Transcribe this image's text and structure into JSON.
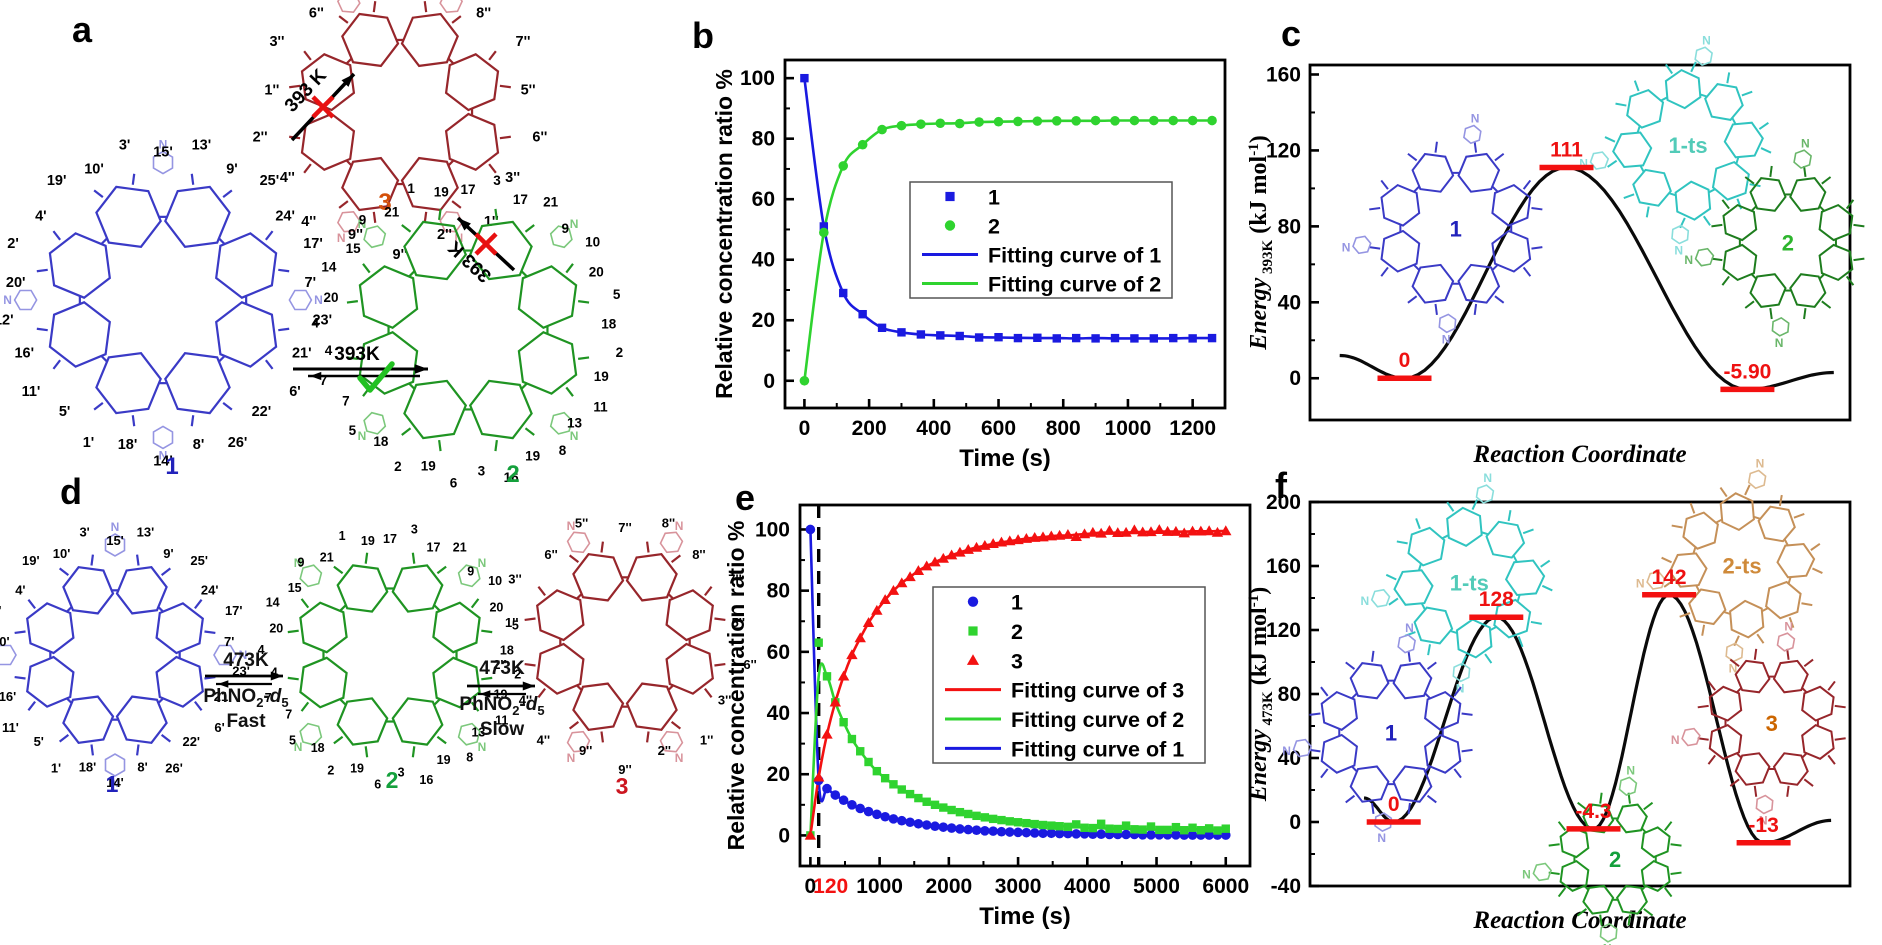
{
  "figure": {
    "background": "#ffffff"
  },
  "panels": {
    "a": {
      "letter": "a",
      "compound1_label": "1",
      "compound2_label": "2",
      "compound3_label": "3",
      "arrow_1_to_3": {
        "label": "393 K",
        "blocked": true
      },
      "arrow_2_to_3": {
        "label": "393 K",
        "blocked": true
      },
      "arrow_1_to_2": {
        "label": "393K",
        "allowed": true
      }
    },
    "d": {
      "letter": "d",
      "compound1_label": "1",
      "compound2_label": "2",
      "compound3_label": "3",
      "arrow1": {
        "temp": "473K",
        "solvent_pre": "PhNO",
        "solvent_sub1": "2",
        "solvent_dash": "-",
        "solvent_it": "d",
        "solvent_sub2": "5",
        "rate": "Fast"
      },
      "arrow2": {
        "temp": "473K",
        "solvent_pre": "PhNO",
        "solvent_sub1": "2",
        "solvent_dash": "-",
        "solvent_it": "d",
        "solvent_sub2": "5",
        "rate": "Slow"
      }
    },
    "b": {
      "letter": "b"
    },
    "c": {
      "letter": "c"
    },
    "e": {
      "letter": "e"
    },
    "f": {
      "letter": "f"
    }
  },
  "compounds": {
    "1": {
      "name": "1",
      "nitrogen": "N",
      "atom_labels": [
        "15'",
        "13'",
        "9'",
        "25'",
        "24'",
        "17'",
        "7'",
        "23'",
        "21'",
        "6'",
        "22'",
        "26'",
        "8'",
        "14'",
        "18'",
        "1'",
        "5'",
        "11'",
        "16'",
        "12'",
        "20'",
        "2'",
        "4'",
        "19'",
        "10'",
        "3'"
      ]
    },
    "2": {
      "name": "2",
      "nitrogen": "N",
      "atom_labels": [
        "17",
        "3",
        "17",
        "21",
        "9",
        "10",
        "20",
        "5",
        "18",
        "2",
        "19",
        "11",
        "13",
        "8",
        "19",
        "16",
        "3",
        "6",
        "19",
        "2",
        "18",
        "5",
        "7",
        "7",
        "4",
        "4",
        "20",
        "14",
        "15",
        "9",
        "21",
        "1",
        "19"
      ]
    },
    "3": {
      "name": "3",
      "nitrogen": "N",
      "atom_labels": [
        "7''",
        "8''",
        "8''",
        "7''",
        "5''",
        "6''",
        "3''",
        "1''",
        "2''",
        "9''",
        "9''",
        "4''",
        "4''",
        "2''",
        "1''",
        "3''",
        "6''",
        "5''"
      ]
    }
  },
  "compound_colors": {
    "c1": {
      "main": "#3a3ac6",
      "pendant": "#9595e2",
      "label": "#2222bb"
    },
    "c2": {
      "main": "#1f9422",
      "pendant": "#7cc87c",
      "label": "#14a03c"
    },
    "c3": {
      "main": "#97262b",
      "pendant": "#d8939b",
      "label_a": "#d4500a",
      "label_d": "#cc1620",
      "label_f": "#cc6600"
    },
    "c1ts": {
      "main": "#30c4c0",
      "pendant": "#8adedc",
      "label": "#52cbb8"
    },
    "c2ts": {
      "main": "#c59058",
      "pendant": "#ddba90",
      "label": "#cf8a3a"
    },
    "c2dark": {
      "main": "#1e7d1e",
      "pendant": "#6ab66a",
      "label": "#2db52d"
    }
  },
  "chart_data": [
    {
      "id": "b",
      "type": "line",
      "xlabel": "Time (s)",
      "ylabel": "Relative concentration ratio %",
      "xlim": [
        -60,
        1300
      ],
      "ylim": [
        -9,
        106
      ],
      "xticks": [
        0,
        200,
        400,
        600,
        800,
        1000,
        1200
      ],
      "yticks": [
        0,
        20,
        40,
        60,
        80,
        100
      ],
      "grid": false,
      "legend_position": "center-right",
      "x": [
        0,
        60,
        120,
        180,
        240,
        300,
        360,
        420,
        480,
        540,
        600,
        660,
        720,
        780,
        840,
        900,
        960,
        1020,
        1080,
        1140,
        1200,
        1260
      ],
      "series": [
        {
          "name": "1",
          "marker": "square",
          "color": "#1a1ae0",
          "values": [
            100,
            51,
            29,
            22,
            17.5,
            16,
            15.3,
            15,
            14.8,
            14.3,
            14.4,
            14.1,
            14.2,
            14,
            14.1,
            14,
            14.1,
            14,
            14,
            14.1,
            14,
            14.1
          ]
        },
        {
          "name": "2",
          "marker": "circle",
          "color": "#2fd32f",
          "values": [
            0,
            49,
            71,
            78,
            83,
            84.3,
            84.8,
            85.1,
            85,
            85.5,
            85.6,
            85.7,
            85.8,
            85.9,
            85.9,
            86,
            85.9,
            86,
            86,
            86,
            86,
            86
          ]
        }
      ],
      "legend": [
        {
          "kind": "marker",
          "marker": "square",
          "color": "#1a1ae0",
          "label": "1"
        },
        {
          "kind": "marker",
          "marker": "circle",
          "color": "#2fd32f",
          "label": "2"
        },
        {
          "kind": "line",
          "color": "#1a1ae0",
          "label": "Fitting curve of 1"
        },
        {
          "kind": "line",
          "color": "#2fd32f",
          "label": "Fitting curve of 2"
        }
      ]
    },
    {
      "id": "c",
      "type": "energy",
      "ylabel_main": "Energy",
      "ylabel_sub": "393K",
      "ylabel_unit_pre": " (kJ mol",
      "ylabel_unit_sup": "-1",
      "ylabel_unit_post": ")",
      "xlabel": "Reaction Coordinate",
      "ylim": [
        -22,
        165
      ],
      "yticks": [
        0,
        40,
        80,
        120,
        160
      ],
      "value_color": "#ee1111",
      "profile_start": {
        "xf": 0.055,
        "value": 12
      },
      "profile_end": {
        "xf": 0.97,
        "value": 3
      },
      "stationary_points": [
        {
          "xf": 0.175,
          "value": 0,
          "label": "0",
          "species": "1"
        },
        {
          "xf": 0.475,
          "value": 111,
          "label": "111",
          "species": "1-ts"
        },
        {
          "xf": 0.81,
          "value": -5.9,
          "label": "-5.90",
          "species": "2"
        }
      ],
      "insets": [
        {
          "label": "1",
          "palette": "c1",
          "xf": 0.27,
          "yf": 0.46,
          "r": 60
        },
        {
          "label": "1-ts",
          "palette": "c1ts",
          "xf": 0.7,
          "yf": 0.225,
          "r": 56
        },
        {
          "label": "2",
          "palette": "c2dark",
          "xf": 0.885,
          "yf": 0.5,
          "r": 52
        }
      ]
    },
    {
      "id": "e",
      "type": "line",
      "xlabel": "Time (s)",
      "ylabel": "Relative concentration ratio %",
      "xlim": [
        -150,
        6350
      ],
      "ylim": [
        -10,
        108
      ],
      "xticks": [
        0,
        1000,
        2000,
        3000,
        4000,
        5000,
        6000
      ],
      "extra_xtick": {
        "value": 120,
        "label": "120",
        "color": "#f31111"
      },
      "vline": {
        "x": 120,
        "style": "dashed",
        "color": "#000000"
      },
      "yticks": [
        0,
        20,
        40,
        60,
        80,
        100
      ],
      "grid": false,
      "legend_position": "center-right",
      "x": [
        0,
        120,
        240,
        360,
        480,
        600,
        720,
        840,
        960,
        1080,
        1200,
        1320,
        1440,
        1560,
        1680,
        1800,
        1920,
        2040,
        2160,
        2280,
        2400,
        2520,
        2640,
        2760,
        2880,
        3000,
        3120,
        3240,
        3360,
        3480,
        3600,
        3720,
        3840,
        3960,
        4080,
        4200,
        4320,
        4440,
        4560,
        4680,
        4800,
        4920,
        5040,
        5160,
        5280,
        5400,
        5520,
        5640,
        5760,
        5880,
        6000
      ],
      "series": [
        {
          "name": "1",
          "marker": "circle",
          "color": "#1a1ae0",
          "values": [
            100,
            18,
            15.3,
            13.2,
            11.5,
            10,
            8.8,
            7.8,
            6.9,
            6.1,
            5.4,
            4.8,
            4.3,
            3.8,
            3.4,
            3,
            2.7,
            2.4,
            2.1,
            1.9,
            1.7,
            1.5,
            1.4,
            1.2,
            1.1,
            1,
            0.9,
            0.8,
            0.7,
            0.7,
            0.6,
            0.6,
            0.5,
            0.5,
            0.4,
            0.4,
            0.3,
            0.3,
            0.3,
            0.3,
            0.2,
            0.2,
            0.2,
            0.2,
            0.2,
            0.1,
            0.1,
            0.1,
            0.1,
            0.1,
            0.1
          ]
        },
        {
          "name": "2",
          "marker": "square",
          "color": "#2fd32f",
          "values": [
            0,
            63,
            52,
            43.5,
            37,
            31.5,
            27.5,
            24,
            21,
            18.7,
            16.7,
            15,
            13.5,
            12.2,
            11,
            10,
            9.1,
            8.3,
            7.6,
            7,
            6.4,
            5.9,
            5.4,
            5,
            4.6,
            4.3,
            4,
            3.7,
            3.4,
            3.2,
            3,
            2.8,
            3.6,
            2.5,
            2.4,
            3.8,
            2.2,
            2.1,
            3.2,
            2,
            1.9,
            2.9,
            1.8,
            1.8,
            2.7,
            1.7,
            2.5,
            1.7,
            2.3,
            1.6,
            2.2
          ]
        },
        {
          "name": "3",
          "marker": "triangle",
          "color": "#f31111",
          "values": [
            0,
            19,
            33,
            43.5,
            52,
            59,
            64.5,
            69.5,
            73.5,
            77,
            80,
            82.5,
            84.5,
            86.5,
            88,
            89.3,
            90.5,
            91.6,
            92.5,
            93.4,
            94.1,
            94.7,
            95.3,
            95.8,
            96.2,
            96.6,
            97,
            97.3,
            97.5,
            97.8,
            98,
            98.3,
            97.6,
            98.5,
            99,
            98.7,
            99.6,
            98.9,
            99,
            99.8,
            99.1,
            99.2,
            99.9,
            99.3,
            99.3,
            98.8,
            99.4,
            99.4,
            99.5,
            99,
            99.5
          ]
        }
      ],
      "legend": [
        {
          "kind": "marker",
          "marker": "circle",
          "color": "#1a1ae0",
          "label": "1"
        },
        {
          "kind": "marker",
          "marker": "square",
          "color": "#2fd32f",
          "label": "2"
        },
        {
          "kind": "marker",
          "marker": "triangle",
          "color": "#f31111",
          "label": "3"
        },
        {
          "kind": "line",
          "color": "#f31111",
          "label": "Fitting curve of 3"
        },
        {
          "kind": "line",
          "color": "#2fd32f",
          "label": "Fitting curve of 2"
        },
        {
          "kind": "line",
          "color": "#1a1ae0",
          "label": "Fitting curve of 1"
        }
      ]
    },
    {
      "id": "f",
      "type": "energy",
      "ylabel_main": "Energy",
      "ylabel_sub": "473K",
      "ylabel_unit_pre": " (kJ mol",
      "ylabel_unit_sup": "-1",
      "ylabel_unit_post": ")",
      "xlabel": "Reaction Coordinate",
      "ylim": [
        -40,
        200
      ],
      "yticks": [
        -40,
        0,
        40,
        80,
        120,
        160,
        200
      ],
      "value_color": "#ee1111",
      "profile_start": {
        "xf": 0.1,
        "value": 15
      },
      "profile_end": {
        "xf": 0.965,
        "value": 1
      },
      "stationary_points": [
        {
          "xf": 0.155,
          "value": 0,
          "label": "0",
          "species": "1"
        },
        {
          "xf": 0.345,
          "value": 128,
          "label": "128",
          "species": "1-ts"
        },
        {
          "xf": 0.525,
          "value": -4.3,
          "label": "-4.3",
          "species": "2"
        },
        {
          "xf": 0.665,
          "value": 142,
          "label": "142",
          "species": "2-ts"
        },
        {
          "xf": 0.84,
          "value": -13,
          "label": "-13",
          "species": "3"
        }
      ],
      "insets": [
        {
          "label": "1-ts",
          "palette": "c1ts",
          "xf": 0.295,
          "yf": 0.21,
          "r": 56
        },
        {
          "label": "2-ts",
          "palette": "c2ts",
          "xf": 0.8,
          "yf": 0.165,
          "r": 54
        },
        {
          "label": "1",
          "palette": "c1",
          "xf": 0.15,
          "yf": 0.6,
          "r": 56
        },
        {
          "label": "3",
          "palette": "c3",
          "xf": 0.855,
          "yf": 0.575,
          "r": 50
        },
        {
          "label": "2",
          "palette": "c2",
          "xf": 0.565,
          "yf": 0.93,
          "r": 44
        }
      ]
    }
  ]
}
